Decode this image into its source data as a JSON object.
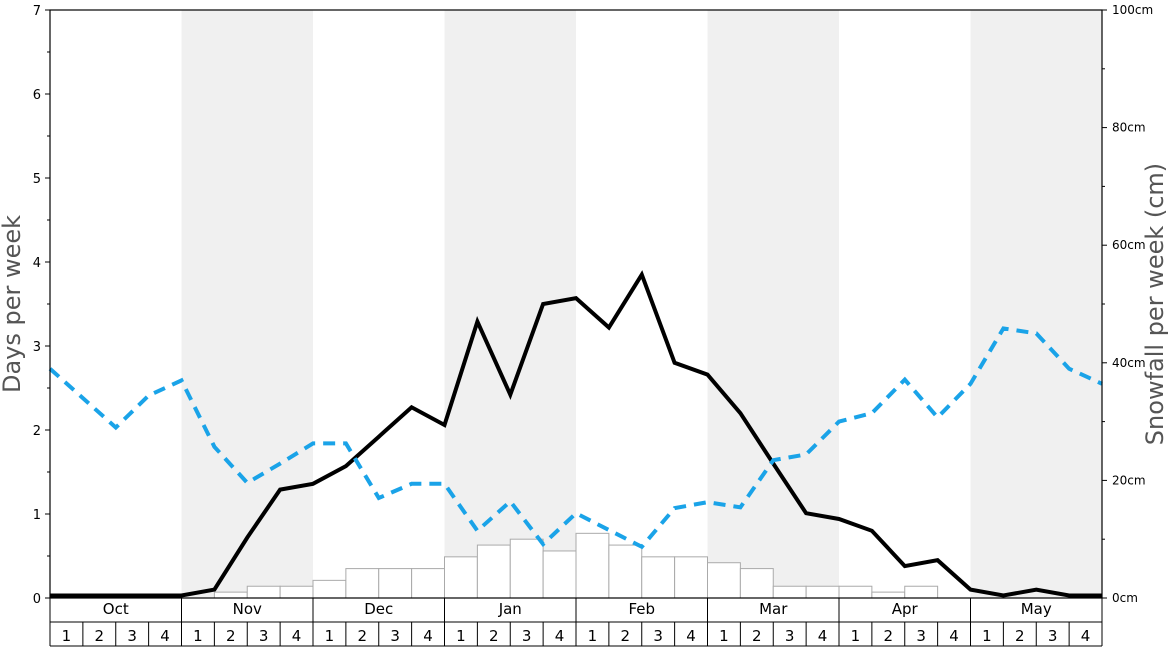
{
  "chart_data": {
    "type": "bar",
    "y_left_label": "Days per week",
    "y_right_label": "Snowfall per week (cm)",
    "y_left_range": [
      0,
      7
    ],
    "y_left_ticks": [
      "0",
      "1",
      "2",
      "3",
      "4",
      "5",
      "6",
      "7"
    ],
    "y_right_range": [
      0,
      100
    ],
    "y_right_ticks": [
      "0cm",
      "20cm",
      "40cm",
      "60cm",
      "80cm",
      "100cm"
    ],
    "months": [
      "Oct",
      "Nov",
      "Dec",
      "Jan",
      "Feb",
      "Mar",
      "Apr",
      "May"
    ],
    "week_labels": [
      "1",
      "2",
      "3",
      "4"
    ],
    "shaded_months": [
      "Nov",
      "Jan",
      "Mar",
      "May"
    ],
    "colors": {
      "shade": "#f0f0f0",
      "bar_fill": "#ffffff",
      "bar_stroke": "#aaaaaa",
      "snow_days_line": "#000000",
      "sun_days_line": "#1aa3e8"
    },
    "snowfall_cm": [
      0,
      0,
      0,
      0,
      0,
      1,
      2,
      2,
      3,
      5,
      5,
      5,
      7,
      9,
      10,
      8,
      11,
      9,
      7,
      7,
      6,
      5,
      2,
      2,
      2,
      1,
      2,
      0,
      0,
      0,
      0,
      0
    ],
    "series": [
      {
        "values": [
          0.03,
          0.03,
          0.03,
          0.03,
          0.03,
          0.1,
          0.72,
          1.29,
          1.36,
          1.57,
          1.92,
          2.27,
          2.06,
          3.29,
          2.42,
          3.5,
          3.57,
          3.22,
          3.85,
          2.8,
          2.66,
          2.2,
          1.6,
          1.01,
          0.94,
          0.8,
          0.38,
          0.45,
          0.1,
          0.03,
          0.1,
          0.03,
          0.03
        ]
      },
      {
        "values": [
          2.73,
          2.38,
          2.03,
          2.41,
          2.59,
          1.8,
          1.37,
          1.6,
          1.84,
          1.84,
          1.19,
          1.36,
          1.36,
          0.8,
          1.15,
          0.64,
          1.01,
          0.81,
          0.61,
          1.07,
          1.14,
          1.08,
          1.64,
          1.71,
          2.1,
          2.2,
          2.6,
          2.15,
          2.55,
          3.21,
          3.15,
          2.73,
          2.55
        ]
      }
    ]
  }
}
